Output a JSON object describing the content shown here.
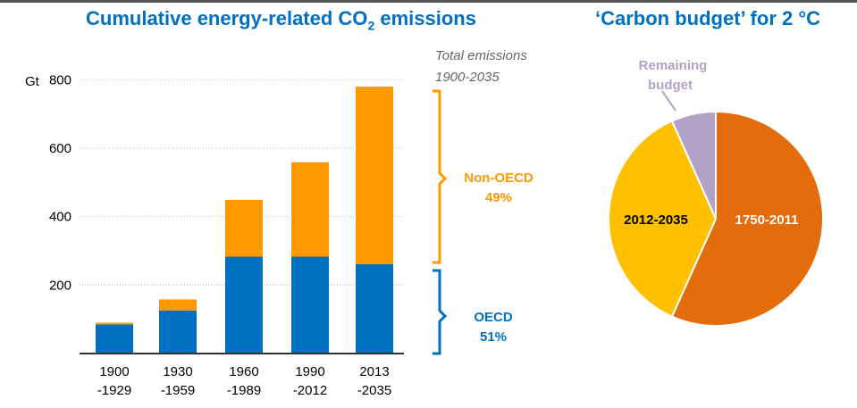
{
  "chart_data": [
    {
      "type": "bar",
      "stacked": true,
      "title": "Cumulative energy-related CO2 emissions",
      "title_main": "Cumulative energy-related CO",
      "title_sub": "2",
      "title_end": " emissions",
      "ylabel": "Gt",
      "ylim": [
        0,
        800
      ],
      "yticks": [
        200,
        400,
        600,
        800
      ],
      "grid": true,
      "categories": [
        [
          "1900",
          "-1929"
        ],
        [
          "1930",
          "-1959"
        ],
        [
          "1960",
          "-1989"
        ],
        [
          "1990",
          "-2012"
        ],
        [
          "2013",
          "-2035"
        ]
      ],
      "series": [
        {
          "name": "OECD",
          "color": "#0070c0",
          "values": [
            85,
            126,
            283,
            283,
            261
          ]
        },
        {
          "name": "Non-OECD",
          "color": "#ff9900",
          "values": [
            5,
            32,
            166,
            276,
            519
          ]
        }
      ],
      "annotations": {
        "total_line1": "Total emissions",
        "total_line2": "1900-2035",
        "non_oecd_label": "Non-OECD",
        "non_oecd_share": "49%",
        "oecd_label": "OECD",
        "oecd_share": "51%"
      }
    },
    {
      "type": "pie",
      "title": "‘Carbon budget’ for 2 °C",
      "slices": [
        {
          "label": "1750-2011",
          "value": 56.7,
          "color": "#e46c0a"
        },
        {
          "label": "2012-2035",
          "value": 36.6,
          "color": "#ffc000"
        },
        {
          "label_line1": "Remaining",
          "label_line2": "budget",
          "value": 6.7,
          "color": "#b3a2c7"
        }
      ]
    }
  ]
}
